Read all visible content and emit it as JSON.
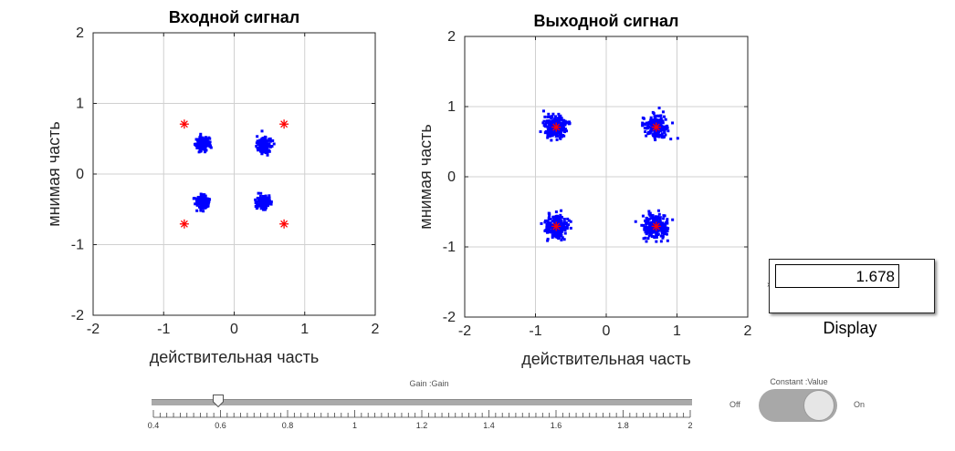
{
  "chart_data": [
    {
      "type": "scatter",
      "title": "Входной сигнал",
      "xlabel": "действительная часть",
      "ylabel": "мнимая часть",
      "xlim": [
        -2,
        2
      ],
      "ylim": [
        -2,
        2
      ],
      "xticks": [
        "-2",
        "-1",
        "0",
        "1",
        "2"
      ],
      "yticks": [
        "-2",
        "-1",
        "0",
        "1",
        "2"
      ],
      "grid": true,
      "series": [
        {
          "color": "#0000ff",
          "marker": "dot",
          "clusters": [
            {
              "center": [
                -0.45,
                0.42
              ],
              "spread": 0.1,
              "count": 150
            },
            {
              "center": [
                0.42,
                0.4
              ],
              "spread": 0.1,
              "count": 150
            },
            {
              "center": [
                -0.45,
                -0.4
              ],
              "spread": 0.1,
              "count": 150
            },
            {
              "center": [
                0.42,
                -0.4
              ],
              "spread": 0.1,
              "count": 150
            }
          ]
        },
        {
          "color": "#ff0000",
          "marker": "star",
          "points": [
            [
              -0.707,
              0.707
            ],
            [
              0.707,
              0.707
            ],
            [
              -0.707,
              -0.707
            ],
            [
              0.707,
              -0.707
            ]
          ]
        }
      ]
    },
    {
      "type": "scatter",
      "title": "Выходной сигнал",
      "xlabel": "действительная часть",
      "ylabel": "мнимая часть",
      "xlim": [
        -2,
        2
      ],
      "ylim": [
        -2,
        2
      ],
      "xticks": [
        "-2",
        "-1",
        "0",
        "1",
        "2"
      ],
      "yticks": [
        "-2",
        "-1",
        "0",
        "1",
        "2"
      ],
      "grid": true,
      "series": [
        {
          "color": "#0000ff",
          "marker": "dot",
          "clusters": [
            {
              "center": [
                -0.707,
                0.707
              ],
              "spread": 0.16,
              "count": 230
            },
            {
              "center": [
                0.707,
                0.707
              ],
              "spread": 0.16,
              "count": 230
            },
            {
              "center": [
                -0.707,
                -0.707
              ],
              "spread": 0.16,
              "count": 230
            },
            {
              "center": [
                0.707,
                -0.707
              ],
              "spread": 0.16,
              "count": 230
            }
          ]
        },
        {
          "color": "#ff0000",
          "marker": "star",
          "points": [
            [
              -0.707,
              0.707
            ],
            [
              0.707,
              0.707
            ],
            [
              -0.707,
              -0.707
            ],
            [
              0.707,
              -0.707
            ]
          ]
        }
      ]
    }
  ],
  "display": {
    "value": "1.678",
    "label": "Display"
  },
  "slider": {
    "title": "Gain :Gain",
    "min": 0.4,
    "max": 2,
    "value": 0.6,
    "tick_labels": [
      "0.4",
      "0.6",
      "0.8",
      "1",
      "1.2",
      "1.4",
      "1.6",
      "1.8",
      "2"
    ]
  },
  "switch": {
    "title": "Constant :Value",
    "off_label": "Off",
    "on_label": "On",
    "state": "on"
  }
}
